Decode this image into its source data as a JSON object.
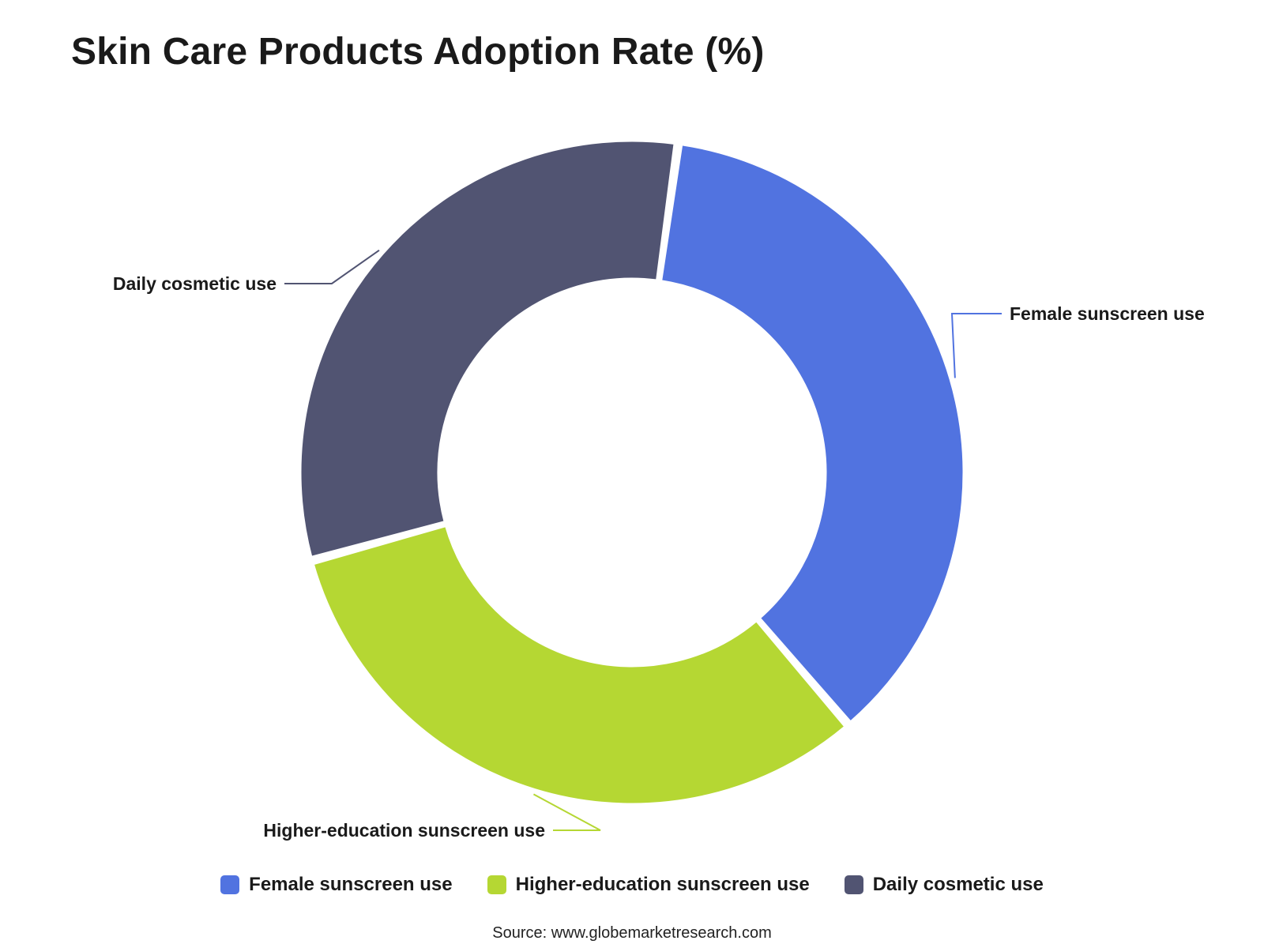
{
  "chart_data": {
    "type": "pie",
    "variant": "donut",
    "title": "Skin Care Products Adoption Rate (%)",
    "categories": [
      "Female sunscreen use",
      "Higher-education sunscreen use",
      "Daily cosmetic use"
    ],
    "values": [
      36.5,
      32.0,
      31.5
    ],
    "colors": [
      "#5173e0",
      "#b5d733",
      "#515472"
    ],
    "legend": {
      "position": "bottom",
      "items": [
        {
          "label": "Female sunscreen use",
          "color": "#5173e0"
        },
        {
          "label": "Higher-education sunscreen use",
          "color": "#b5d733"
        },
        {
          "label": "Daily cosmetic use",
          "color": "#515472"
        }
      ]
    },
    "source": "Source: www.globemarketresearch.com"
  }
}
